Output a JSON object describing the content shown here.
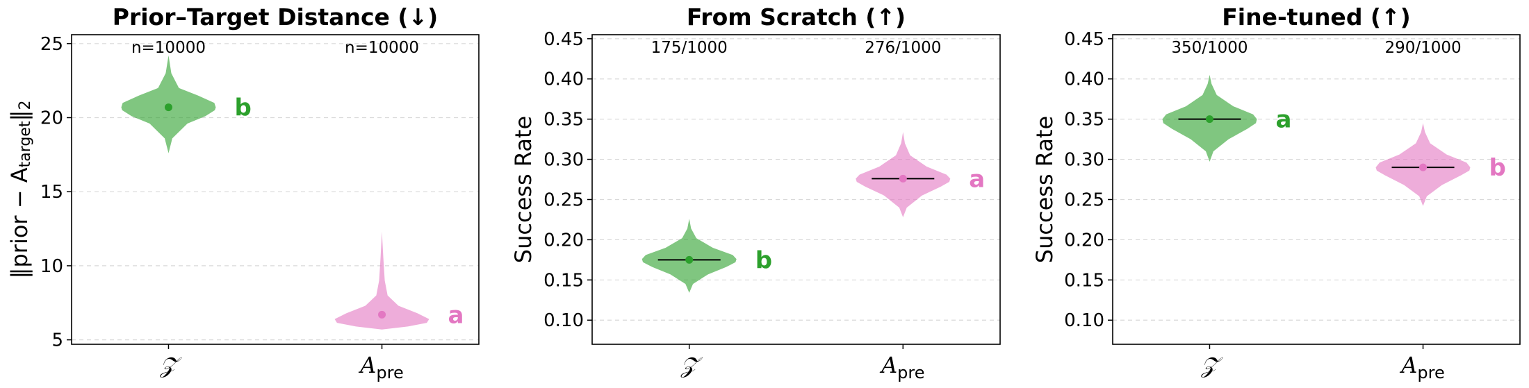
{
  "colors": {
    "green": "#2ca02c",
    "pink": "#e377c2",
    "median": "#000000"
  },
  "chart_data": [
    {
      "type": "violin",
      "title": "Prior–Target Distance (↓)",
      "ylabel": "‖prior − A",
      "ylabel_sub": "target",
      "ylabel_tail": "‖",
      "ylabel_tail_sub": "2",
      "ylim": [
        4.7,
        25.6
      ],
      "yticks": [
        5,
        10,
        15,
        20,
        25
      ],
      "ytick_labels": [
        "5",
        "10",
        "15",
        "20",
        "25"
      ],
      "grid": true,
      "groups": [
        {
          "label": "𝒵",
          "label_sub": "",
          "color": "green",
          "mean": 20.7,
          "median": null,
          "count": "n=10000",
          "letter": "b",
          "violin": {
            "y": [
              17.6,
              18.6,
              19.6,
              20.1,
              20.5,
              20.7,
              21.0,
              21.5,
              22.0,
              23.0,
              24.2
            ],
            "w": [
              0.0,
              0.08,
              0.4,
              0.78,
              0.98,
              1.0,
              0.97,
              0.62,
              0.22,
              0.06,
              0.0
            ]
          }
        },
        {
          "label": "A",
          "label_sub": "pre",
          "color": "pink",
          "mean": 6.7,
          "median": null,
          "count": "n=10000",
          "letter": "a",
          "violin": {
            "y": [
              5.7,
              5.9,
              6.15,
              6.4,
              6.8,
              7.3,
              8.0,
              9.0,
              10.5,
              12.3
            ],
            "w": [
              0.0,
              0.55,
              0.95,
              1.0,
              0.75,
              0.35,
              0.12,
              0.06,
              0.03,
              0.0
            ]
          }
        }
      ]
    },
    {
      "type": "violin",
      "title": "From Scratch (↑)",
      "ylabel": "Success Rate",
      "ylim": [
        0.07,
        0.455
      ],
      "yticks": [
        0.1,
        0.15,
        0.2,
        0.25,
        0.3,
        0.35,
        0.4,
        0.45
      ],
      "ytick_labels": [
        "0.10",
        "0.15",
        "0.20",
        "0.25",
        "0.30",
        "0.35",
        "0.40",
        "0.45"
      ],
      "grid": true,
      "groups": [
        {
          "label": "𝒵",
          "label_sub": "",
          "color": "green",
          "mean": 0.175,
          "median": 0.175,
          "count": "175/1000",
          "letter": "b",
          "violin": {
            "y": [
              0.134,
              0.145,
              0.157,
              0.166,
              0.172,
              0.176,
              0.181,
              0.19,
              0.202,
              0.214,
              0.226
            ],
            "w": [
              0.0,
              0.08,
              0.4,
              0.78,
              0.98,
              1.0,
              0.92,
              0.5,
              0.15,
              0.04,
              0.0
            ]
          }
        },
        {
          "label": "A",
          "label_sub": "pre",
          "color": "pink",
          "mean": 0.276,
          "median": 0.276,
          "count": "276/1000",
          "letter": "a",
          "violin": {
            "y": [
              0.228,
              0.24,
              0.255,
              0.266,
              0.272,
              0.276,
              0.281,
              0.291,
              0.305,
              0.32,
              0.334
            ],
            "w": [
              0.0,
              0.08,
              0.4,
              0.8,
              0.98,
              1.0,
              0.92,
              0.5,
              0.15,
              0.04,
              0.0
            ]
          }
        }
      ]
    },
    {
      "type": "violin",
      "title": "Fine-tuned (↑)",
      "ylabel": "Success Rate",
      "ylim": [
        0.07,
        0.455
      ],
      "yticks": [
        0.1,
        0.15,
        0.2,
        0.25,
        0.3,
        0.35,
        0.4,
        0.45
      ],
      "ytick_labels": [
        "0.10",
        "0.15",
        "0.20",
        "0.25",
        "0.30",
        "0.35",
        "0.40",
        "0.45"
      ],
      "grid": true,
      "groups": [
        {
          "label": "𝒵",
          "label_sub": "",
          "color": "green",
          "mean": 0.35,
          "median": 0.35,
          "count": "350/1000",
          "letter": "a",
          "violin": {
            "y": [
              0.297,
              0.31,
              0.325,
              0.338,
              0.345,
              0.35,
              0.356,
              0.366,
              0.38,
              0.394,
              0.405
            ],
            "w": [
              0.0,
              0.08,
              0.4,
              0.8,
              0.98,
              1.0,
              0.92,
              0.5,
              0.15,
              0.04,
              0.0
            ]
          }
        },
        {
          "label": "A",
          "label_sub": "pre",
          "color": "pink",
          "mean": 0.29,
          "median": 0.29,
          "count": "290/1000",
          "letter": "b",
          "violin": {
            "y": [
              0.242,
              0.254,
              0.268,
              0.28,
              0.286,
              0.29,
              0.296,
              0.306,
              0.32,
              0.334,
              0.345
            ],
            "w": [
              0.0,
              0.08,
              0.4,
              0.8,
              0.98,
              1.0,
              0.92,
              0.5,
              0.15,
              0.04,
              0.0
            ]
          }
        }
      ]
    }
  ]
}
